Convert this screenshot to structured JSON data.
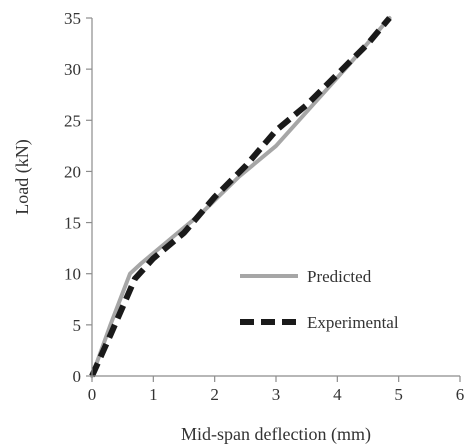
{
  "chart_data": {
    "type": "line",
    "title": "",
    "xlabel": "Mid-span deflection (mm)",
    "ylabel": "Load (kN)",
    "xlim": [
      0,
      6
    ],
    "ylim": [
      0,
      35
    ],
    "xticks": [
      "0",
      "1",
      "2",
      "3",
      "4",
      "5",
      "6"
    ],
    "yticks": [
      "0",
      "5",
      "10",
      "15",
      "20",
      "25",
      "30",
      "35"
    ],
    "grid": false,
    "legend_position": "lower-right",
    "series": [
      {
        "name": "Predicted",
        "color": "#a6a6a6",
        "style": "solid",
        "x": [
          0,
          0.3,
          0.62,
          0.8,
          1.2,
          1.8,
          2.4,
          3.0,
          3.6,
          4.2,
          4.85
        ],
        "y": [
          0,
          5,
          10,
          11,
          13,
          16,
          19.5,
          22.5,
          26.5,
          30.5,
          35
        ]
      },
      {
        "name": "Experimental",
        "color": "#1a1a1a",
        "style": "dashed",
        "x": [
          0,
          0.3,
          0.7,
          1.0,
          1.5,
          2.0,
          2.5,
          3.0,
          3.5,
          4.0,
          4.5,
          4.85
        ],
        "y": [
          0,
          4,
          9.5,
          11.5,
          14,
          17.5,
          20.5,
          24,
          26.5,
          29.5,
          32.5,
          35
        ]
      }
    ]
  }
}
